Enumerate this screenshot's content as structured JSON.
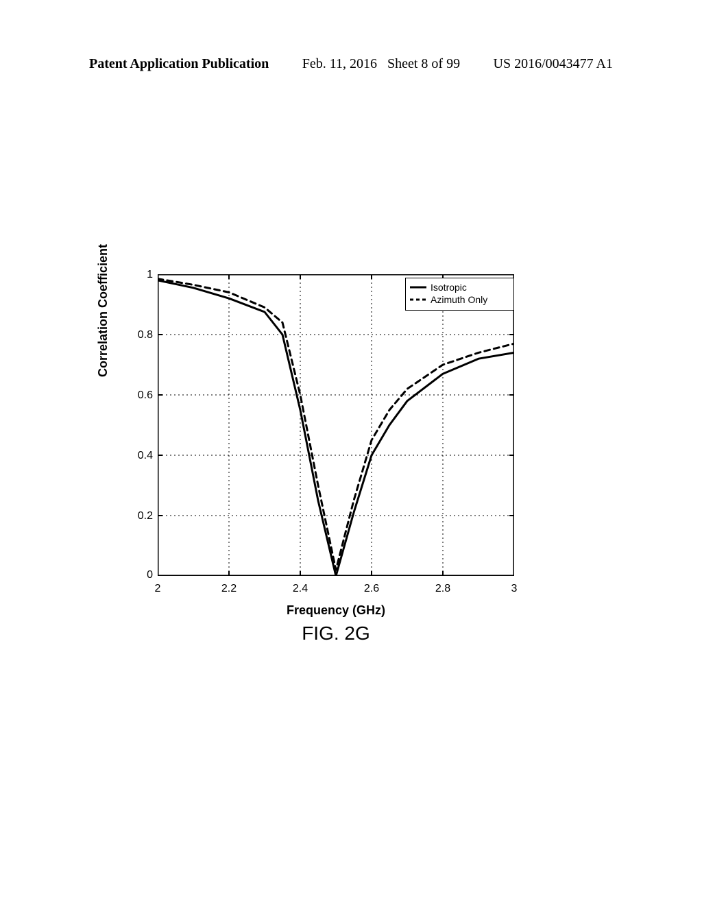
{
  "header": {
    "left": "Patent Application Publication",
    "date": "Feb. 11, 2016",
    "sheet": "Sheet 8 of 99",
    "pubnum": "US 2016/0043477 A1"
  },
  "chart": {
    "type": "line",
    "title": "",
    "xlabel": "Frequency (GHz)",
    "ylabel": "Correlation Coefficient",
    "caption": "FIG. 2G",
    "xlim": [
      2,
      3
    ],
    "ylim": [
      0,
      1
    ],
    "xticks": [
      2,
      2.2,
      2.4,
      2.6,
      2.8,
      3
    ],
    "yticks": [
      0,
      0.2,
      0.4,
      0.6,
      0.8,
      1
    ],
    "grid_color": "#000000",
    "grid_dash": "2,4",
    "axis_color": "#000000",
    "background_color": "#ffffff",
    "label_fontsize": 18,
    "tick_fontsize": 16,
    "caption_fontsize": 28,
    "line_width": 3,
    "series": [
      {
        "name": "Isotropic",
        "label": "Isotropic",
        "color": "#000000",
        "dash": "none",
        "x": [
          2.0,
          2.1,
          2.2,
          2.3,
          2.35,
          2.4,
          2.45,
          2.5,
          2.55,
          2.6,
          2.65,
          2.7,
          2.8,
          2.9,
          3.0
        ],
        "y": [
          0.98,
          0.955,
          0.92,
          0.875,
          0.8,
          0.55,
          0.25,
          0.0,
          0.21,
          0.4,
          0.5,
          0.58,
          0.67,
          0.72,
          0.74
        ]
      },
      {
        "name": "Azimuth Only",
        "label": "Azimuth Only",
        "color": "#000000",
        "dash": "8,6",
        "x": [
          2.0,
          2.1,
          2.2,
          2.3,
          2.35,
          2.4,
          2.45,
          2.5,
          2.55,
          2.6,
          2.65,
          2.7,
          2.8,
          2.9,
          3.0
        ],
        "y": [
          0.985,
          0.965,
          0.94,
          0.89,
          0.84,
          0.6,
          0.3,
          0.02,
          0.25,
          0.45,
          0.55,
          0.62,
          0.7,
          0.74,
          0.77
        ]
      }
    ],
    "legend": {
      "position": "top-right",
      "border_color": "#000000",
      "background_color": "#ffffff",
      "fontsize": 14
    }
  }
}
